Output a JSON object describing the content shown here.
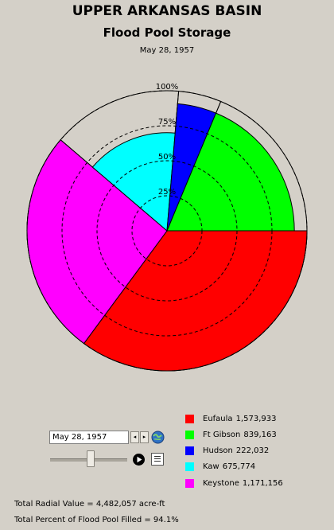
{
  "header": {
    "title": "UPPER ARKANSAS BASIN",
    "subtitle": "Flood Pool Storage",
    "date": "May 28, 1957"
  },
  "chart_data": {
    "type": "pie",
    "title": "UPPER ARKANSAS BASIN",
    "subtitle": "Flood Pool Storage",
    "date": "May 28, 1957",
    "radial_ticks": [
      "25%",
      "50%",
      "75%",
      "100%"
    ],
    "radial_tick_values": [
      0.25,
      0.5,
      0.75,
      1.0
    ],
    "slices": [
      {
        "name": "Eufaula",
        "label": "1,573,933",
        "value": 1573933,
        "fill_pct": 100,
        "color": "#ff0000"
      },
      {
        "name": "Keystone",
        "label": "1,171,156",
        "value": 1171156,
        "fill_pct": 100,
        "color": "#ff00ff"
      },
      {
        "name": "Kaw",
        "label": "675,774",
        "value": 675774,
        "fill_pct": 70,
        "color": "#00ffff"
      },
      {
        "name": "Hudson",
        "label": "222,032",
        "value": 222032,
        "fill_pct": 91,
        "color": "#0000ff"
      },
      {
        "name": "Ft Gibson",
        "label": "839,163",
        "value": 839163,
        "fill_pct": 91,
        "color": "#00ff00"
      }
    ],
    "total_radial_value": "4,482,057",
    "total_percent_filled": "94.1%"
  },
  "legend": [
    {
      "name": "Eufaula",
      "value": "1,573,933",
      "color": "#ff0000"
    },
    {
      "name": "Ft Gibson",
      "value": "839,163",
      "color": "#00ff00"
    },
    {
      "name": "Hudson",
      "value": "222,032",
      "color": "#0000ff"
    },
    {
      "name": "Kaw",
      "value": "675,774",
      "color": "#00ffff"
    },
    {
      "name": "Keystone",
      "value": "1,171,156",
      "color": "#ff00ff"
    }
  ],
  "controls": {
    "date_value": "May 28, 1957",
    "prev_icon": "◂",
    "next_icon": "▸",
    "globe_icon": "globe-icon",
    "play_icon": "play-icon",
    "report_icon": "report-icon",
    "slider_position": 0.5
  },
  "footer": {
    "total_radial_label": "Total Radial Value =",
    "total_radial_value": "4,482,057",
    "total_radial_unit": "acre-ft",
    "total_percent_label": "Total Percent of Flood Pool Filled =",
    "total_percent_value": "94.1%"
  }
}
